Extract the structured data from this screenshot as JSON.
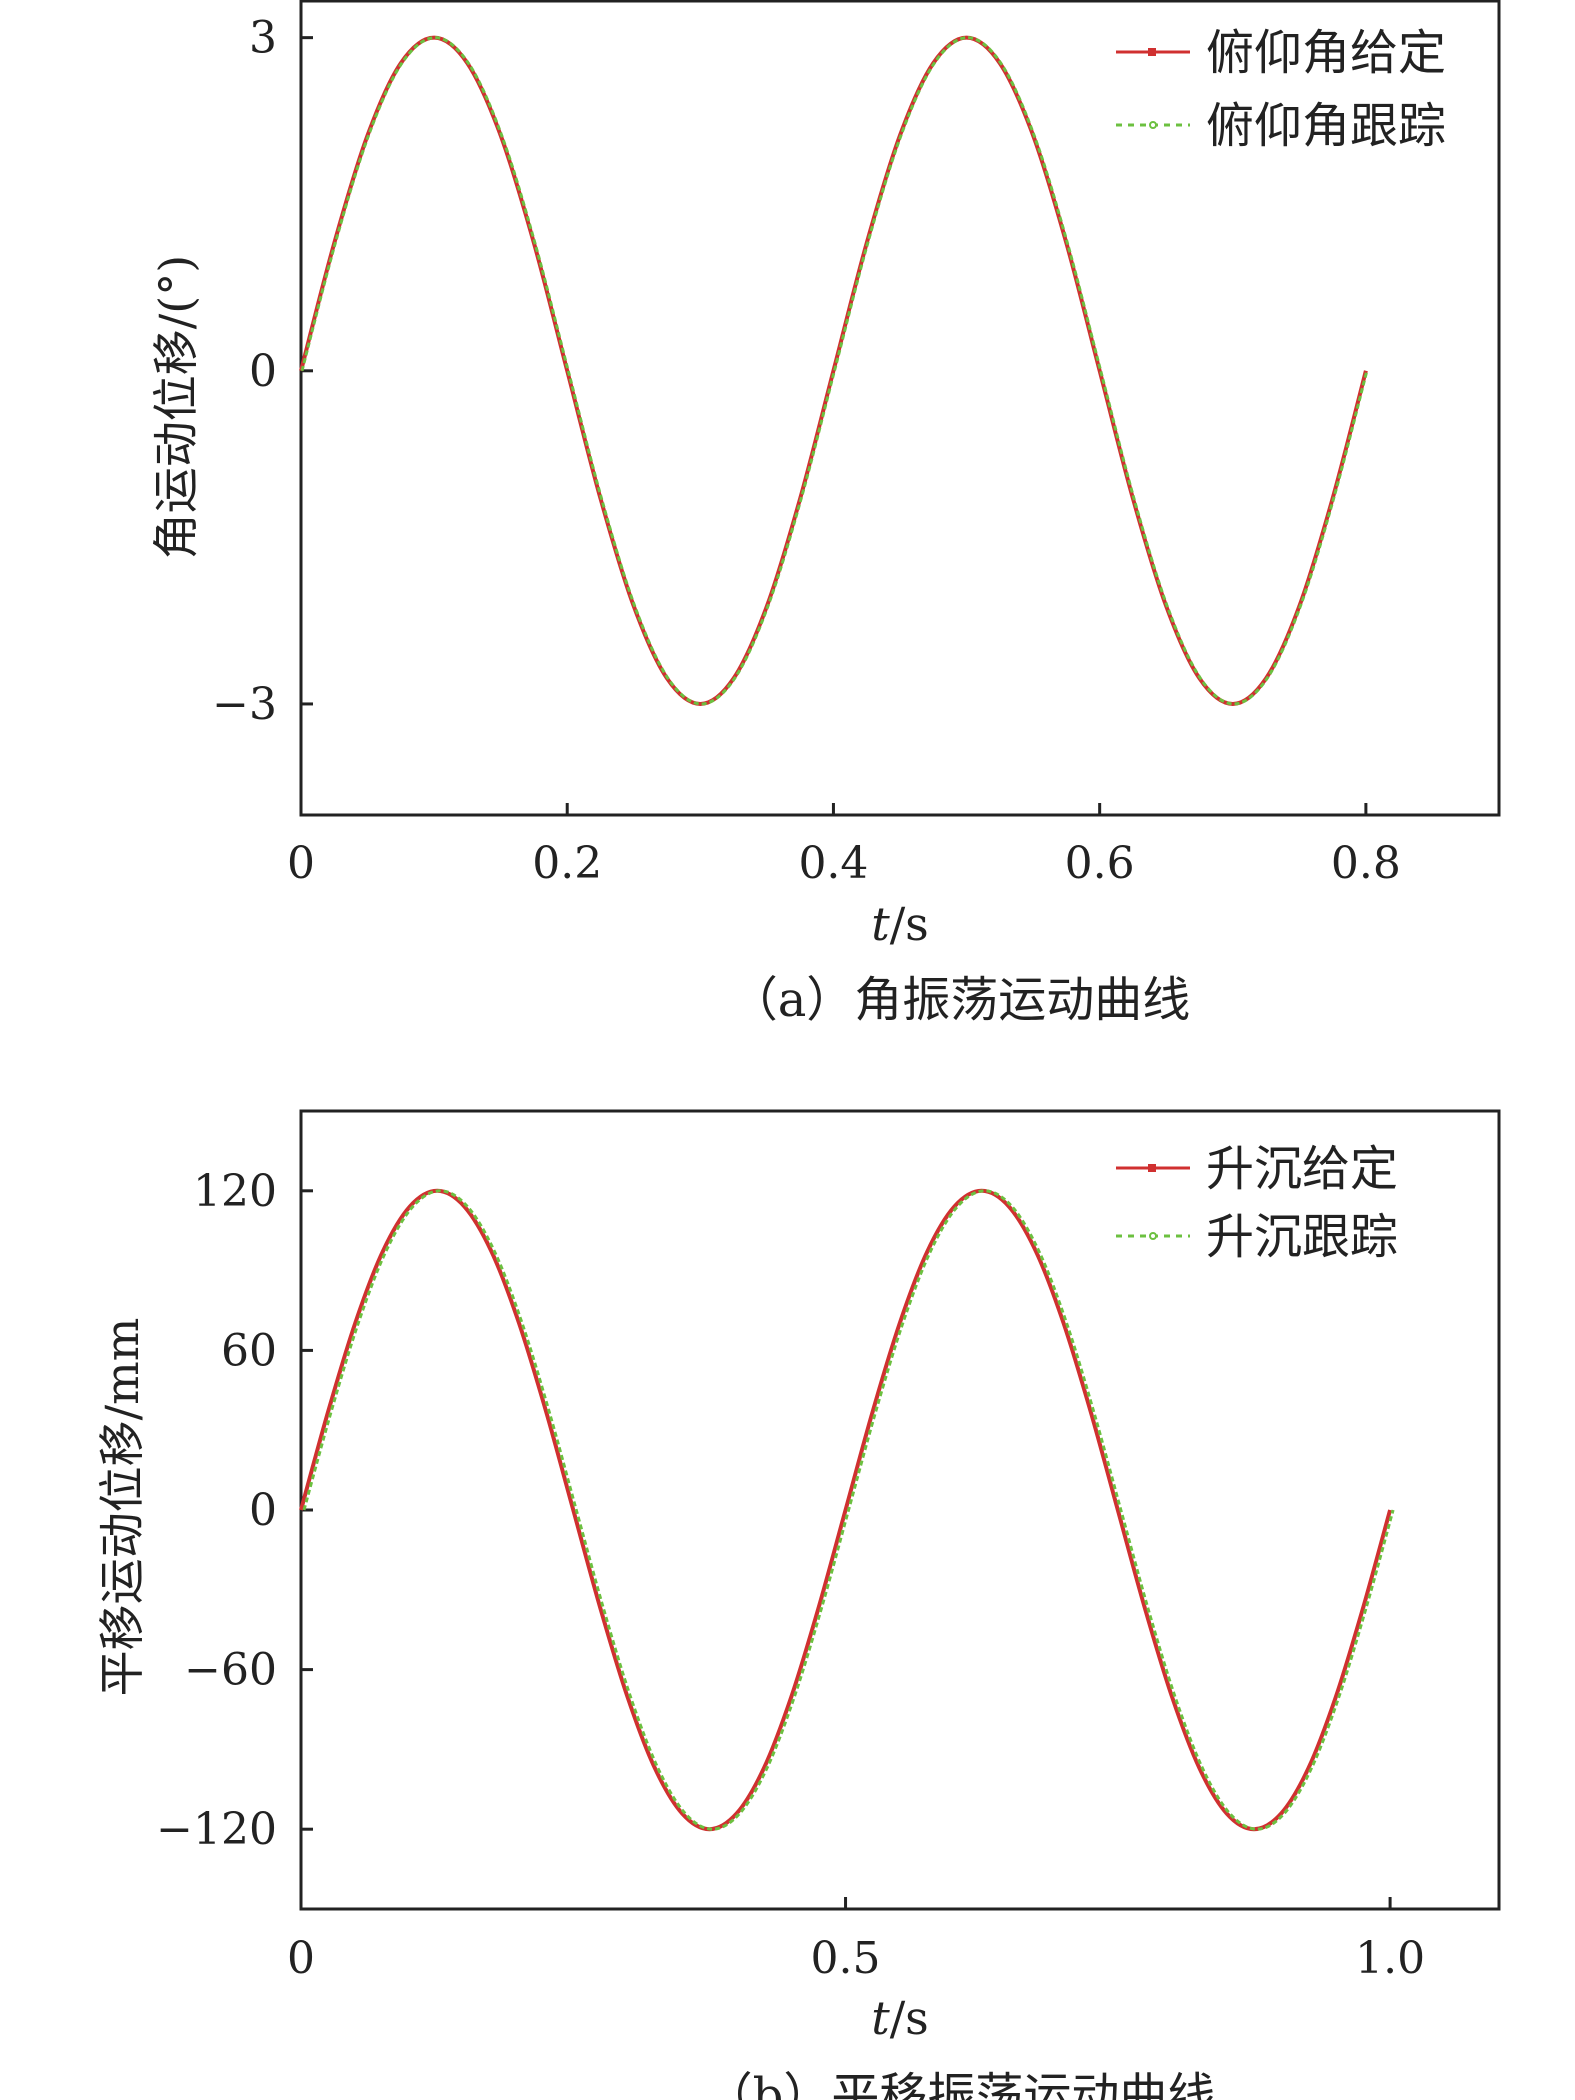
{
  "chart_data": [
    {
      "type": "line",
      "caption": "（a）角振荡运动曲线",
      "xlabel_var": "t",
      "xlabel_unit": "/s",
      "ylabel": "角运动位移/(°)",
      "xlim": [
        0,
        0.9
      ],
      "ylim": [
        -4,
        3.33
      ],
      "xticks": [
        0,
        0.2,
        0.4,
        0.6,
        0.8
      ],
      "xtick_labels": [
        "0",
        "0.2",
        "0.4",
        "0.6",
        "0.8"
      ],
      "yticks": [
        3,
        0,
        -3
      ],
      "ytick_labels": [
        "3",
        "0",
        "−3"
      ],
      "grid": false,
      "legend_position": "top-right",
      "x": [
        0,
        0.025,
        0.05,
        0.075,
        0.1,
        0.125,
        0.15,
        0.175,
        0.2,
        0.225,
        0.25,
        0.275,
        0.3,
        0.325,
        0.35,
        0.375,
        0.4,
        0.425,
        0.45,
        0.475,
        0.5,
        0.525,
        0.55,
        0.575,
        0.6,
        0.625,
        0.65,
        0.675,
        0.7,
        0.725,
        0.75,
        0.775,
        0.8
      ],
      "series": [
        {
          "name": "俯仰角给定",
          "color": "#d03030",
          "style": "solid",
          "values": [
            0,
            1.15,
            2.12,
            2.77,
            3,
            2.77,
            2.12,
            1.15,
            0,
            -1.15,
            -2.12,
            -2.77,
            -3,
            -2.77,
            -2.12,
            -1.15,
            0,
            1.15,
            2.12,
            2.77,
            3,
            2.77,
            2.12,
            1.15,
            0,
            -1.15,
            -2.12,
            -2.77,
            -3,
            -2.77,
            -2.12,
            -1.15,
            0
          ]
        },
        {
          "name": "俯仰角跟踪",
          "color": "#6cc040",
          "style": "dashed",
          "values": [
            0,
            1.15,
            2.12,
            2.77,
            3,
            2.77,
            2.12,
            1.15,
            0,
            -1.15,
            -2.12,
            -2.77,
            -3,
            -2.77,
            -2.12,
            -1.15,
            0,
            1.15,
            2.12,
            2.77,
            3,
            2.77,
            2.12,
            1.15,
            0,
            -1.15,
            -2.12,
            -2.77,
            -3,
            -2.77,
            -2.12,
            -1.15,
            0
          ]
        }
      ]
    },
    {
      "type": "line",
      "caption": "（b）平移振荡运动曲线",
      "xlabel_var": "t",
      "xlabel_unit": "/s",
      "ylabel": "平移运动位移/mm",
      "xlim": [
        0,
        1.1
      ],
      "ylim": [
        -150,
        150
      ],
      "xticks": [
        0,
        0.5,
        1.0
      ],
      "xtick_labels": [
        "0",
        "0.5",
        "1.0"
      ],
      "yticks": [
        120,
        60,
        0,
        -60,
        -120
      ],
      "ytick_labels": [
        "120",
        "60",
        "0",
        "−60",
        "−120"
      ],
      "grid": false,
      "legend_position": "top-right",
      "x": [
        0,
        0.025,
        0.05,
        0.075,
        0.1,
        0.125,
        0.15,
        0.175,
        0.2,
        0.225,
        0.25,
        0.275,
        0.3,
        0.325,
        0.35,
        0.375,
        0.4,
        0.425,
        0.45,
        0.475,
        0.5,
        0.525,
        0.55,
        0.575,
        0.6,
        0.625,
        0.65,
        0.675,
        0.7,
        0.725,
        0.75,
        0.775,
        0.8,
        0.825,
        0.85,
        0.875,
        0.9,
        0.925,
        0.95,
        0.975,
        1.0
      ],
      "series": [
        {
          "name": "升沉给定",
          "color": "#d03030",
          "style": "solid",
          "values": [
            0,
            37.1,
            70.5,
            97.1,
            114.1,
            120,
            114.1,
            97.1,
            70.5,
            37.1,
            0,
            -37.1,
            -70.5,
            -97.1,
            -114.1,
            -120,
            -114.1,
            -97.1,
            -70.5,
            -37.1,
            0,
            37.1,
            70.5,
            97.1,
            114.1,
            120,
            114.1,
            97.1,
            70.5,
            37.1,
            0,
            -37.1,
            -70.5,
            -97.1,
            -114.1,
            -120,
            -114.1,
            -97.1,
            -70.5,
            -37.1,
            0
          ]
        },
        {
          "name": "升沉跟踪",
          "color": "#6cc040",
          "style": "dashed",
          "values": [
            0,
            37.1,
            70.5,
            97.1,
            114.1,
            120,
            114.1,
            97.1,
            70.5,
            37.1,
            0,
            -37.1,
            -70.5,
            -97.1,
            -114.1,
            -120,
            -114.1,
            -97.1,
            -70.5,
            -37.1,
            0,
            37.1,
            70.5,
            97.1,
            114.1,
            120,
            114.1,
            97.1,
            70.5,
            37.1,
            0,
            -37.1,
            -70.5,
            -97.1,
            -114.1,
            -120,
            -114.1,
            -97.1,
            -70.5,
            -37.1,
            0
          ]
        }
      ]
    }
  ]
}
